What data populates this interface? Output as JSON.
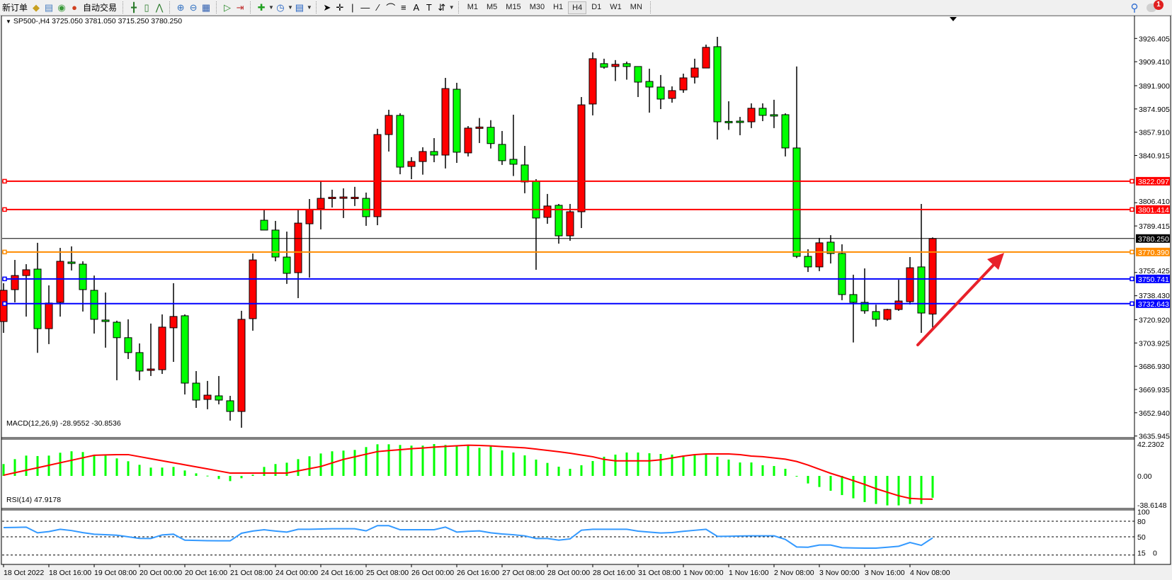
{
  "toolbar": {
    "new_order": "新订单",
    "auto_trading": "自动交易",
    "icons": [
      "gold-bars-icon",
      "history-center-icon",
      "signals-icon",
      "autotrading-icon",
      "bar-chart-icon",
      "candlestick-icon",
      "line-chart-icon",
      "zoom-in-icon",
      "zoom-out-icon",
      "tile-windows-icon",
      "autoscroll-icon",
      "chart-shift-icon",
      "indicators-icon",
      "periods-icon",
      "templates-icon",
      "cursor-icon",
      "crosshair-icon",
      "vertical-line-icon",
      "horizontal-line-icon",
      "trendline-icon",
      "equidistant-channel-icon",
      "fibonacci-icon",
      "text-icon",
      "text-label-icon",
      "arrows-icon",
      "search-icon",
      "notifications-icon"
    ],
    "timeframes": [
      "M1",
      "M5",
      "M15",
      "M30",
      "H1",
      "H4",
      "D1",
      "W1",
      "MN"
    ],
    "active_timeframe": "H4",
    "notification_count": "1"
  },
  "chart": {
    "symbol_title": "SP500-,H4",
    "ohlc_readout": "3725.050 3781.050 3715.250 3780.250",
    "macd_title": "MACD(12,26,9) -28.9552 -30.8536",
    "rsi_title": "RSI(14) 47.9178"
  },
  "chart_data": {
    "type": "candlestick",
    "symbol": "SP500-",
    "timeframe": "H4",
    "bullish_color": "#ff0000",
    "bearish_color": "#00ff00",
    "price_ticks": [
      "3926.405",
      "3909.410",
      "3891.900",
      "3874.905",
      "3857.910",
      "3840.915",
      "3806.410",
      "3789.415",
      "3755.425",
      "3738.430",
      "3720.920",
      "3703.925",
      "3686.930",
      "3669.935",
      "3652.940",
      "3635.945"
    ],
    "price_levels": [
      {
        "value": "3822.097",
        "color": "#ff0000"
      },
      {
        "value": "3801.414",
        "color": "#ff0000"
      },
      {
        "value": "3780.250",
        "color": "#000000",
        "kind": "bid"
      },
      {
        "value": "3770.390",
        "color": "#ff8c00"
      },
      {
        "value": "3750.741",
        "color": "#0000ff"
      },
      {
        "value": "3732.643",
        "color": "#0000ff"
      }
    ],
    "time_labels": [
      "18 Oct 2022",
      "18 Oct 16:00",
      "19 Oct 08:00",
      "20 Oct 00:00",
      "20 Oct 16:00",
      "21 Oct 08:00",
      "24 Oct 00:00",
      "24 Oct 16:00",
      "25 Oct 08:00",
      "26 Oct 00:00",
      "26 Oct 16:00",
      "27 Oct 08:00",
      "28 Oct 00:00",
      "28 Oct 16:00",
      "31 Oct 08:00",
      "1 Nov 00:00",
      "1 Nov 16:00",
      "2 Nov 08:00",
      "3 Nov 00:00",
      "3 Nov 16:00",
      "4 Nov 08:00"
    ],
    "candles_ohlc": [
      [
        3719.6,
        3747.6,
        3711.3,
        3742.4
      ],
      [
        3742.9,
        3764.6,
        3733.6,
        3753.2
      ],
      [
        3753.2,
        3761.5,
        3723.2,
        3757.4
      ],
      [
        3757.9,
        3777.1,
        3696.7,
        3714.4
      ],
      [
        3714.4,
        3746.0,
        3703.1,
        3733.1
      ],
      [
        3733.6,
        3773.4,
        3723.2,
        3763.6
      ],
      [
        3763.1,
        3774.5,
        3756.9,
        3762.0
      ],
      [
        3761.5,
        3763.6,
        3726.9,
        3742.9
      ],
      [
        3742.4,
        3753.2,
        3710.8,
        3721.2
      ],
      [
        3720.7,
        3740.8,
        3700.5,
        3719.6
      ],
      [
        3719.1,
        3720.2,
        3676.7,
        3707.8
      ],
      [
        3707.8,
        3721.2,
        3692.2,
        3696.9
      ],
      [
        3696.9,
        3703.6,
        3676.7,
        3683.4
      ],
      [
        3683.4,
        3718.1,
        3679.8,
        3684.4
      ],
      [
        3684.4,
        3724.8,
        3681.3,
        3715.5
      ],
      [
        3715.0,
        3747.6,
        3690.1,
        3723.3
      ],
      [
        3723.8,
        3724.8,
        3666.3,
        3674.6
      ],
      [
        3674.6,
        3683.4,
        3656.5,
        3662.2
      ],
      [
        3662.7,
        3676.2,
        3655.5,
        3665.8
      ],
      [
        3665.3,
        3679.8,
        3659.1,
        3662.2
      ],
      [
        3661.7,
        3665.3,
        3647.2,
        3653.9
      ],
      [
        3653.9,
        3727.4,
        3642.0,
        3721.2
      ],
      [
        3721.7,
        3769.3,
        3712.9,
        3764.6
      ],
      [
        3793.6,
        3801.4,
        3786.4,
        3786.4
      ],
      [
        3786.4,
        3793.1,
        3763.6,
        3766.7
      ],
      [
        3766.7,
        3785.3,
        3747.1,
        3754.8
      ],
      [
        3755.3,
        3801.4,
        3736.7,
        3791.5
      ],
      [
        3791.0,
        3809.1,
        3751.7,
        3801.4
      ],
      [
        3801.9,
        3822.1,
        3786.9,
        3809.6
      ],
      [
        3809.4,
        3815.9,
        3802.9,
        3809.9
      ],
      [
        3809.9,
        3816.9,
        3795.2,
        3810.1
      ],
      [
        3809.4,
        3818.0,
        3804.0,
        3809.9
      ],
      [
        3809.6,
        3813.8,
        3789.5,
        3796.2
      ],
      [
        3796.2,
        3860.4,
        3790.0,
        3856.2
      ],
      [
        3856.2,
        3874.3,
        3843.8,
        3870.2
      ],
      [
        3870.2,
        3871.7,
        3827.2,
        3832.4
      ],
      [
        3832.9,
        3839.7,
        3823.6,
        3836.5
      ],
      [
        3836.5,
        3846.9,
        3826.9,
        3843.8
      ],
      [
        3843.8,
        3853.6,
        3836.0,
        3841.2
      ],
      [
        3841.2,
        3897.6,
        3831.4,
        3889.8
      ],
      [
        3889.3,
        3894.0,
        3835.5,
        3843.3
      ],
      [
        3842.8,
        3862.4,
        3840.2,
        3860.9
      ],
      [
        3860.6,
        3868.3,
        3850.0,
        3861.2
      ],
      [
        3861.5,
        3866.7,
        3846.0,
        3849.6
      ],
      [
        3849.0,
        3858.8,
        3834.0,
        3837.1
      ],
      [
        3838.1,
        3870.7,
        3825.9,
        3834.5
      ],
      [
        3834.0,
        3847.9,
        3813.3,
        3821.6
      ],
      [
        3822.1,
        3823.6,
        3757.4,
        3795.2
      ],
      [
        3795.7,
        3812.8,
        3791.0,
        3804.0
      ],
      [
        3804.5,
        3805.5,
        3776.5,
        3782.2
      ],
      [
        3782.2,
        3805.5,
        3778.6,
        3799.8
      ],
      [
        3799.8,
        3883.6,
        3787.9,
        3877.9
      ],
      [
        3878.5,
        3916.2,
        3870.2,
        3911.6
      ],
      [
        3908.0,
        3911.6,
        3904.3,
        3905.4
      ],
      [
        3905.9,
        3910.6,
        3895.3,
        3907.5
      ],
      [
        3908.0,
        3909.5,
        3896.3,
        3905.9
      ],
      [
        3905.9,
        3905.9,
        3883.6,
        3894.5
      ],
      [
        3895.0,
        3904.3,
        3872.2,
        3890.9
      ],
      [
        3890.9,
        3899.7,
        3874.8,
        3882.1
      ],
      [
        3882.6,
        3891.4,
        3879.5,
        3888.3
      ],
      [
        3888.8,
        3900.7,
        3886.7,
        3897.6
      ],
      [
        3898.1,
        3911.6,
        3893.5,
        3904.8
      ],
      [
        3904.8,
        3921.9,
        3904.8,
        3919.9
      ],
      [
        3920.4,
        3927.6,
        3852.6,
        3865.5
      ],
      [
        3865.3,
        3880.5,
        3859.6,
        3864.7
      ],
      [
        3865.5,
        3869.1,
        3855.7,
        3865.2
      ],
      [
        3865.5,
        3879.0,
        3860.9,
        3875.4
      ],
      [
        3875.4,
        3879.0,
        3866.0,
        3870.2
      ],
      [
        3870.2,
        3881.6,
        3860.9,
        3870.1
      ],
      [
        3870.7,
        3871.7,
        3840.2,
        3846.4
      ],
      [
        3846.4,
        3905.9,
        3766.0,
        3767.2
      ],
      [
        3767.2,
        3772.4,
        3755.8,
        3759.5
      ],
      [
        3759.5,
        3780.7,
        3756.4,
        3777.1
      ],
      [
        3777.6,
        3782.7,
        3762.0,
        3769.3
      ],
      [
        3769.3,
        3776.0,
        3735.2,
        3739.3
      ],
      [
        3739.3,
        3753.8,
        3704.3,
        3733.6
      ],
      [
        3733.6,
        3758.4,
        3725.3,
        3727.4
      ],
      [
        3726.9,
        3731.9,
        3715.9,
        3721.2
      ],
      [
        3721.2,
        3728.9,
        3720.2,
        3728.4
      ],
      [
        3728.4,
        3750.1,
        3727.4,
        3734.6
      ],
      [
        3734.1,
        3766.7,
        3732.0,
        3758.9
      ],
      [
        3759.5,
        3805.5,
        3711.3,
        3725.8
      ],
      [
        3725.05,
        3781.05,
        3715.25,
        3780.25
      ]
    ],
    "macd": {
      "params": "12,26,9",
      "axis_labels": [
        "42.2302",
        "0.00",
        "-38.6148"
      ],
      "range": [
        -38.6148,
        42.2302
      ],
      "histogram_color": "#00ff00",
      "signal_color": "#ff0000",
      "main": [
        15.7,
        22.2,
        26.9,
        26.3,
        26.9,
        30.7,
        32.6,
        31.6,
        27.2,
        26.9,
        23.2,
        19.4,
        14.7,
        11.0,
        11.0,
        11.9,
        7.2,
        3.4,
        0.3,
        -4.1,
        -6.9,
        -3.1,
        1.6,
        11.9,
        15.7,
        17.5,
        22.2,
        26.0,
        29.7,
        32.6,
        33.5,
        34.4,
        38.2,
        41.9,
        41.9,
        41.0,
        40.1,
        40.1,
        42.2,
        41.0,
        40.1,
        40.1,
        37.2,
        39.1,
        33.8,
        31.0,
        27.2,
        21.6,
        17.2,
        12.2,
        9.4,
        14.1,
        19.7,
        25.4,
        28.2,
        31.0,
        31.0,
        30.0,
        29.1,
        28.2,
        27.2,
        28.2,
        28.2,
        25.4,
        21.6,
        17.8,
        17.8,
        14.1,
        13.1,
        9.4,
        -0.5,
        -10.0,
        -14.7,
        -19.7,
        -25.4,
        -29.7,
        -34.7,
        -37.2,
        -39.1,
        -39.1,
        -37.2,
        -37.2,
        -28.9552
      ],
      "signal": [
        0.9,
        4.2,
        7.5,
        10.8,
        14.1,
        17.4,
        20.7,
        24.0,
        27.3,
        27.8,
        28.2,
        28.2,
        25.5,
        22.8,
        20.1,
        17.4,
        14.7,
        12.0,
        9.3,
        6.5,
        3.8,
        3.8,
        3.8,
        3.8,
        3.8,
        3.8,
        6.7,
        9.6,
        12.5,
        17.2,
        21.9,
        25.3,
        28.8,
        32.2,
        33.5,
        34.7,
        36.0,
        37.0,
        38.1,
        39.1,
        39.9,
        40.7,
        40.3,
        39.8,
        38.8,
        38.0,
        37.2,
        35.5,
        33.8,
        32.0,
        30.0,
        27.7,
        25.4,
        21.9,
        20.0,
        20.0,
        20.0,
        20.0,
        21.3,
        23.8,
        26.3,
        28.2,
        29.1,
        29.1,
        29.1,
        28.2,
        26.3,
        25.4,
        23.8,
        22.2,
        19.1,
        14.4,
        8.8,
        3.4,
        -1.3,
        -6.3,
        -11.3,
        -16.9,
        -21.6,
        -26.3,
        -29.8,
        -30.6,
        -30.8536
      ]
    },
    "rsi": {
      "period": 14,
      "axis_labels": [
        "100",
        "80",
        "50",
        "15",
        "0"
      ],
      "levels": [
        80,
        50,
        15
      ],
      "range": [
        0,
        100
      ],
      "line_color": "#3399ff",
      "values": [
        67.7,
        68.0,
        68.6,
        57.7,
        60,
        64.5,
        62,
        58,
        55,
        54,
        53,
        50,
        47,
        46.8,
        53.6,
        55,
        43.5,
        43,
        42.5,
        42.3,
        42.3,
        56.8,
        61,
        63.6,
        61,
        59.1,
        64.5,
        64.5,
        65,
        65.5,
        65.5,
        65.5,
        61.4,
        71.4,
        71.4,
        63.6,
        63.6,
        63.6,
        63.6,
        68.6,
        59.1,
        60.5,
        61.4,
        57.7,
        55.5,
        54,
        51.8,
        46.8,
        46.8,
        43.6,
        46,
        62.7,
        64.5,
        64.5,
        64.5,
        64.5,
        60.9,
        59,
        57.3,
        58.2,
        60.5,
        62.5,
        64.5,
        50.9,
        51,
        51.5,
        51.8,
        51.8,
        51.8,
        45,
        30.5,
        30,
        34.1,
        34.1,
        29.1,
        28.5,
        28.2,
        28.2,
        30,
        31.8,
        39.1,
        33.6,
        47.9178
      ]
    },
    "annotation": {
      "type": "arrow",
      "direction": "up-right",
      "color": "#e8212a"
    }
  }
}
